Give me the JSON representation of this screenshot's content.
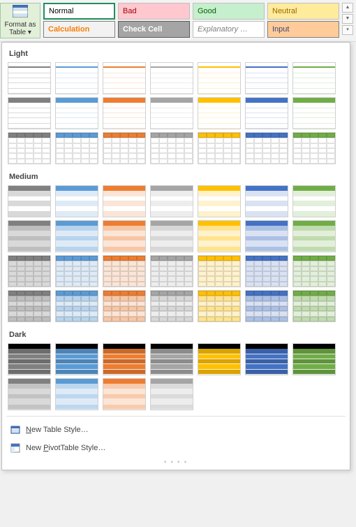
{
  "ribbon": {
    "format_button_label": "Format as Table ▾",
    "styles": [
      {
        "label": "Normal",
        "bg": "#ffffff",
        "fg": "#000000",
        "border": "#1f8f5f",
        "bw": "2px"
      },
      {
        "label": "Bad",
        "bg": "#ffc7ce",
        "fg": "#9c0006",
        "border": "#bfbfbf",
        "bw": "1px"
      },
      {
        "label": "Good",
        "bg": "#c6efce",
        "fg": "#006100",
        "border": "#bfbfbf",
        "bw": "1px"
      },
      {
        "label": "Neutral",
        "bg": "#ffeb9c",
        "fg": "#9c6500",
        "border": "#bfbfbf",
        "bw": "1px"
      },
      {
        "label": "Calculation",
        "bg": "#f2f2f2",
        "fg": "#fa7d00",
        "border": "#7f7f7f",
        "bw": "1px",
        "bold": true
      },
      {
        "label": "Check Cell",
        "bg": "#a5a5a5",
        "fg": "#ffffff",
        "border": "#595959",
        "bw": "1px",
        "bold": true
      },
      {
        "label": "Explanatory …",
        "bg": "#ffffff",
        "fg": "#7f7f7f",
        "border": "#bfbfbf",
        "bw": "1px",
        "italic": true
      },
      {
        "label": "Input",
        "bg": "#ffcc99",
        "fg": "#3f3f76",
        "border": "#7f7f7f",
        "bw": "1px"
      }
    ]
  },
  "sections": {
    "light": "Light",
    "medium": "Medium",
    "dark": "Dark"
  },
  "palette": [
    "#808080",
    "#5b9bd5",
    "#ed7d31",
    "#a5a5a5",
    "#ffc000",
    "#4472c4",
    "#70ad47"
  ],
  "palette_light": [
    "#d9d9d9",
    "#deebf7",
    "#fbe5d6",
    "#ededed",
    "#fff2cc",
    "#d9e2f3",
    "#e2efda"
  ],
  "light_rows": [
    {
      "hdr": "line-top",
      "body": "plain",
      "band": false,
      "grid": false
    },
    {
      "hdr": "solid-dark",
      "body": "plain",
      "band": false,
      "grid": false
    },
    {
      "hdr": "solid-dark",
      "body": "plain",
      "band": false,
      "grid": true
    }
  ],
  "medium_rows": [
    {
      "hdr": "solid-dark",
      "body": "band-light",
      "grid": false
    },
    {
      "hdr": "solid-dark-strong",
      "body": "band-mid",
      "grid": false
    },
    {
      "hdr": "solid-dark",
      "body": "solid-light",
      "grid": true
    },
    {
      "hdr": "solid-dark-strong",
      "body": "band-mid",
      "grid": true
    }
  ],
  "dark_rows": [
    {
      "hdr": "black",
      "body": "solid-mid",
      "grid": false
    },
    {
      "hdr": "solid-dark",
      "body": "solid-light-band",
      "grid": false,
      "count": 4
    }
  ],
  "footer": {
    "new_table": "New Table Style…",
    "new_pivot": "New PivotTable Style…"
  }
}
